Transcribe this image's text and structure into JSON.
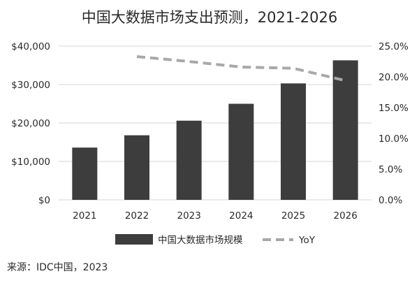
{
  "chart_data": {
    "type": "bar",
    "title": "中国大数据市场支出预测，2021-2026",
    "categories": [
      "2021",
      "2022",
      "2023",
      "2024",
      "2025",
      "2026"
    ],
    "series": [
      {
        "name": "中国大数据市场规模",
        "type": "bar",
        "axis": "left",
        "values": [
          13600,
          16800,
          20600,
          25000,
          30300,
          36300
        ]
      },
      {
        "name": "YoY",
        "type": "line",
        "axis": "right",
        "style": "dashed",
        "values": [
          null,
          23.3,
          22.5,
          21.6,
          21.4,
          19.4
        ]
      }
    ],
    "y_left": {
      "ylim": [
        0,
        40000
      ],
      "ticks": [
        0,
        10000,
        20000,
        30000,
        40000
      ],
      "tick_labels": [
        "$0",
        "$10,000",
        "$20,000",
        "$30,000",
        "$40,000"
      ]
    },
    "y_right": {
      "ylim": [
        0,
        25
      ],
      "ticks": [
        0,
        5,
        10,
        15,
        20,
        25
      ],
      "tick_labels": [
        "0.0%",
        "5.0%",
        "10.0%",
        "15.0%",
        "20.0%",
        "25.0%"
      ]
    },
    "grid": true,
    "legend": {
      "position": "bottom",
      "entries": [
        "中国大数据市场规模",
        "YoY"
      ]
    },
    "source": "来源：IDC中国，2023",
    "colors": {
      "bar": "#3d3d3d",
      "line": "#a8a8a8",
      "grid": "#d4d4d4",
      "text": "#2a2a2a"
    }
  }
}
